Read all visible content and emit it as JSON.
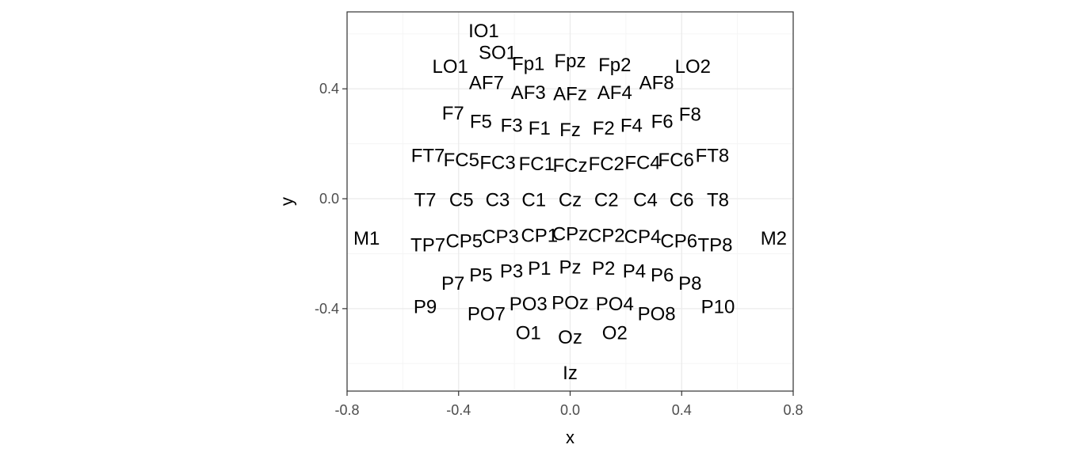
{
  "chart_data": {
    "type": "scatter",
    "title": "",
    "xlabel": "x",
    "ylabel": "y",
    "xlim": [
      -0.8,
      0.8
    ],
    "ylim": [
      -0.7,
      0.68
    ],
    "xticks": [
      "-0.8",
      "-0.4",
      "0.0",
      "0.4",
      "0.8"
    ],
    "yticks": [
      "0.4",
      "0.0",
      "-0.4"
    ],
    "xtick_values": [
      -0.8,
      -0.4,
      0.0,
      0.4,
      0.8
    ],
    "ytick_values": [
      0.4,
      0.0,
      -0.4
    ],
    "grid": true,
    "grid_minor": true,
    "legend": "none",
    "marker": "text",
    "colors": {
      "panel_border": "#333333",
      "grid_major": "#ebebeb",
      "grid_minor": "#f5f5f5",
      "tick_text": "#4d4d4d",
      "text": "#000000"
    },
    "points": [
      {
        "label": "IO1",
        "x": -0.31,
        "y": 0.61
      },
      {
        "label": "SO1",
        "x": -0.26,
        "y": 0.53
      },
      {
        "label": "LO1",
        "x": -0.43,
        "y": 0.48
      },
      {
        "label": "Fp1",
        "x": -0.15,
        "y": 0.49
      },
      {
        "label": "Fpz",
        "x": 0.0,
        "y": 0.5
      },
      {
        "label": "Fp2",
        "x": 0.16,
        "y": 0.485
      },
      {
        "label": "LO2",
        "x": 0.44,
        "y": 0.48
      },
      {
        "label": "AF7",
        "x": -0.3,
        "y": 0.42
      },
      {
        "label": "AF3",
        "x": -0.15,
        "y": 0.385
      },
      {
        "label": "AFz",
        "x": 0.0,
        "y": 0.38
      },
      {
        "label": "AF4",
        "x": 0.16,
        "y": 0.385
      },
      {
        "label": "AF8",
        "x": 0.31,
        "y": 0.42
      },
      {
        "label": "F7",
        "x": -0.42,
        "y": 0.31
      },
      {
        "label": "F5",
        "x": -0.32,
        "y": 0.28
      },
      {
        "label": "F3",
        "x": -0.21,
        "y": 0.265
      },
      {
        "label": "F1",
        "x": -0.11,
        "y": 0.255
      },
      {
        "label": "Fz",
        "x": 0.0,
        "y": 0.25
      },
      {
        "label": "F2",
        "x": 0.12,
        "y": 0.255
      },
      {
        "label": "F4",
        "x": 0.22,
        "y": 0.265
      },
      {
        "label": "F6",
        "x": 0.33,
        "y": 0.28
      },
      {
        "label": "F8",
        "x": 0.43,
        "y": 0.305
      },
      {
        "label": "FT7",
        "x": -0.51,
        "y": 0.155
      },
      {
        "label": "FC5",
        "x": -0.39,
        "y": 0.14
      },
      {
        "label": "FC3",
        "x": -0.26,
        "y": 0.13
      },
      {
        "label": "FC1",
        "x": -0.12,
        "y": 0.125
      },
      {
        "label": "FCz",
        "x": 0.0,
        "y": 0.12
      },
      {
        "label": "FC2",
        "x": 0.13,
        "y": 0.125
      },
      {
        "label": "FC4",
        "x": 0.26,
        "y": 0.13
      },
      {
        "label": "FC6",
        "x": 0.38,
        "y": 0.14
      },
      {
        "label": "FT8",
        "x": 0.51,
        "y": 0.155
      },
      {
        "label": "T7",
        "x": -0.52,
        "y": -0.005
      },
      {
        "label": "C5",
        "x": -0.39,
        "y": -0.005
      },
      {
        "label": "C3",
        "x": -0.26,
        "y": -0.005
      },
      {
        "label": "C1",
        "x": -0.13,
        "y": -0.005
      },
      {
        "label": "Cz",
        "x": 0.0,
        "y": -0.005
      },
      {
        "label": "C2",
        "x": 0.13,
        "y": -0.005
      },
      {
        "label": "C4",
        "x": 0.27,
        "y": -0.005
      },
      {
        "label": "C6",
        "x": 0.4,
        "y": -0.005
      },
      {
        "label": "T8",
        "x": 0.53,
        "y": -0.005
      },
      {
        "label": "M1",
        "x": -0.73,
        "y": -0.145
      },
      {
        "label": "M2",
        "x": 0.73,
        "y": -0.145
      },
      {
        "label": "TP7",
        "x": -0.51,
        "y": -0.17
      },
      {
        "label": "CP5",
        "x": -0.38,
        "y": -0.155
      },
      {
        "label": "CP3",
        "x": -0.25,
        "y": -0.14
      },
      {
        "label": "CP1",
        "x": -0.11,
        "y": -0.135
      },
      {
        "label": "CPz",
        "x": 0.0,
        "y": -0.13
      },
      {
        "label": "CP2",
        "x": 0.13,
        "y": -0.135
      },
      {
        "label": "CP4",
        "x": 0.26,
        "y": -0.14
      },
      {
        "label": "CP6",
        "x": 0.39,
        "y": -0.155
      },
      {
        "label": "TP8",
        "x": 0.52,
        "y": -0.17
      },
      {
        "label": "P7",
        "x": -0.42,
        "y": -0.31
      },
      {
        "label": "P5",
        "x": -0.32,
        "y": -0.28
      },
      {
        "label": "P3",
        "x": -0.21,
        "y": -0.265
      },
      {
        "label": "P1",
        "x": -0.11,
        "y": -0.255
      },
      {
        "label": "Pz",
        "x": 0.0,
        "y": -0.25
      },
      {
        "label": "P2",
        "x": 0.12,
        "y": -0.255
      },
      {
        "label": "P4",
        "x": 0.23,
        "y": -0.265
      },
      {
        "label": "P6",
        "x": 0.33,
        "y": -0.28
      },
      {
        "label": "P8",
        "x": 0.43,
        "y": -0.31
      },
      {
        "label": "P9",
        "x": -0.52,
        "y": -0.395
      },
      {
        "label": "PO7",
        "x": -0.3,
        "y": -0.42
      },
      {
        "label": "PO3",
        "x": -0.15,
        "y": -0.385
      },
      {
        "label": "POz",
        "x": 0.0,
        "y": -0.38
      },
      {
        "label": "PO4",
        "x": 0.16,
        "y": -0.385
      },
      {
        "label": "PO8",
        "x": 0.31,
        "y": -0.42
      },
      {
        "label": "P10",
        "x": 0.53,
        "y": -0.395
      },
      {
        "label": "O1",
        "x": -0.15,
        "y": -0.49
      },
      {
        "label": "Oz",
        "x": 0.0,
        "y": -0.505
      },
      {
        "label": "O2",
        "x": 0.16,
        "y": -0.49
      },
      {
        "label": "Iz",
        "x": 0.0,
        "y": -0.635
      }
    ]
  }
}
